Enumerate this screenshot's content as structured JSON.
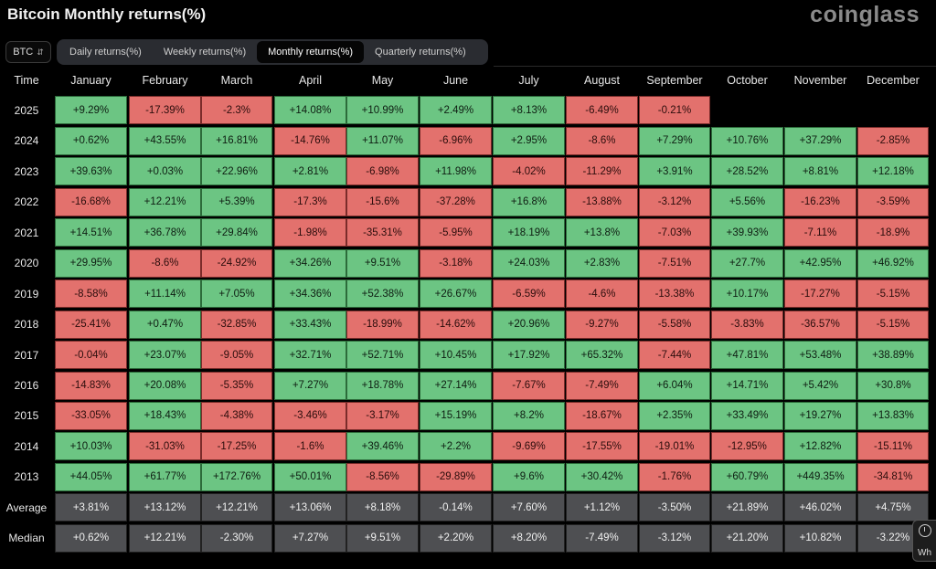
{
  "title": "Bitcoin Monthly returns(%)",
  "brand": "coinglass",
  "asset_select": {
    "value": "BTC"
  },
  "tabs": [
    {
      "label": "Daily returns(%)",
      "active": false
    },
    {
      "label": "Weekly returns(%)",
      "active": false
    },
    {
      "label": "Monthly returns(%)",
      "active": true
    },
    {
      "label": "Quarterly returns(%)",
      "active": false
    }
  ],
  "help_widget": {
    "text": "Wh"
  },
  "colors": {
    "positive": "#6cc583",
    "negative": "#e3716d",
    "stat": "#4e4f52"
  },
  "table": {
    "time_header": "Time",
    "months": [
      "January",
      "February",
      "March",
      "April",
      "May",
      "June",
      "July",
      "August",
      "September",
      "October",
      "November",
      "December"
    ],
    "rows": [
      {
        "year": "2025",
        "values": [
          "+9.29%",
          "-17.39%",
          "-2.3%",
          "+14.08%",
          "+10.99%",
          "+2.49%",
          "+8.13%",
          "-6.49%",
          "-0.21%",
          "",
          "",
          ""
        ]
      },
      {
        "year": "2024",
        "values": [
          "+0.62%",
          "+43.55%",
          "+16.81%",
          "-14.76%",
          "+11.07%",
          "-6.96%",
          "+2.95%",
          "-8.6%",
          "+7.29%",
          "+10.76%",
          "+37.29%",
          "-2.85%"
        ]
      },
      {
        "year": "2023",
        "values": [
          "+39.63%",
          "+0.03%",
          "+22.96%",
          "+2.81%",
          "-6.98%",
          "+11.98%",
          "-4.02%",
          "-11.29%",
          "+3.91%",
          "+28.52%",
          "+8.81%",
          "+12.18%"
        ]
      },
      {
        "year": "2022",
        "values": [
          "-16.68%",
          "+12.21%",
          "+5.39%",
          "-17.3%",
          "-15.6%",
          "-37.28%",
          "+16.8%",
          "-13.88%",
          "-3.12%",
          "+5.56%",
          "-16.23%",
          "-3.59%"
        ]
      },
      {
        "year": "2021",
        "values": [
          "+14.51%",
          "+36.78%",
          "+29.84%",
          "-1.98%",
          "-35.31%",
          "-5.95%",
          "+18.19%",
          "+13.8%",
          "-7.03%",
          "+39.93%",
          "-7.11%",
          "-18.9%"
        ]
      },
      {
        "year": "2020",
        "values": [
          "+29.95%",
          "-8.6%",
          "-24.92%",
          "+34.26%",
          "+9.51%",
          "-3.18%",
          "+24.03%",
          "+2.83%",
          "-7.51%",
          "+27.7%",
          "+42.95%",
          "+46.92%"
        ]
      },
      {
        "year": "2019",
        "values": [
          "-8.58%",
          "+11.14%",
          "+7.05%",
          "+34.36%",
          "+52.38%",
          "+26.67%",
          "-6.59%",
          "-4.6%",
          "-13.38%",
          "+10.17%",
          "-17.27%",
          "-5.15%"
        ]
      },
      {
        "year": "2018",
        "values": [
          "-25.41%",
          "+0.47%",
          "-32.85%",
          "+33.43%",
          "-18.99%",
          "-14.62%",
          "+20.96%",
          "-9.27%",
          "-5.58%",
          "-3.83%",
          "-36.57%",
          "-5.15%"
        ]
      },
      {
        "year": "2017",
        "values": [
          "-0.04%",
          "+23.07%",
          "-9.05%",
          "+32.71%",
          "+52.71%",
          "+10.45%",
          "+17.92%",
          "+65.32%",
          "-7.44%",
          "+47.81%",
          "+53.48%",
          "+38.89%"
        ]
      },
      {
        "year": "2016",
        "values": [
          "-14.83%",
          "+20.08%",
          "-5.35%",
          "+7.27%",
          "+18.78%",
          "+27.14%",
          "-7.67%",
          "-7.49%",
          "+6.04%",
          "+14.71%",
          "+5.42%",
          "+30.8%"
        ]
      },
      {
        "year": "2015",
        "values": [
          "-33.05%",
          "+18.43%",
          "-4.38%",
          "-3.46%",
          "-3.17%",
          "+15.19%",
          "+8.2%",
          "-18.67%",
          "+2.35%",
          "+33.49%",
          "+19.27%",
          "+13.83%"
        ]
      },
      {
        "year": "2014",
        "values": [
          "+10.03%",
          "-31.03%",
          "-17.25%",
          "-1.6%",
          "+39.46%",
          "+2.2%",
          "-9.69%",
          "-17.55%",
          "-19.01%",
          "-12.95%",
          "+12.82%",
          "-15.11%"
        ]
      },
      {
        "year": "2013",
        "values": [
          "+44.05%",
          "+61.77%",
          "+172.76%",
          "+50.01%",
          "-8.56%",
          "-29.89%",
          "+9.6%",
          "+30.42%",
          "-1.76%",
          "+60.79%",
          "+449.35%",
          "-34.81%"
        ]
      }
    ],
    "stats": [
      {
        "label": "Average",
        "values": [
          "+3.81%",
          "+13.12%",
          "+12.21%",
          "+13.06%",
          "+8.18%",
          "-0.14%",
          "+7.60%",
          "+1.12%",
          "-3.50%",
          "+21.89%",
          "+46.02%",
          "+4.75%"
        ]
      },
      {
        "label": "Median",
        "values": [
          "+0.62%",
          "+12.21%",
          "-2.30%",
          "+7.27%",
          "+9.51%",
          "+2.20%",
          "+8.20%",
          "-7.49%",
          "-3.12%",
          "+21.20%",
          "+10.82%",
          "-3.22%"
        ]
      }
    ]
  }
}
